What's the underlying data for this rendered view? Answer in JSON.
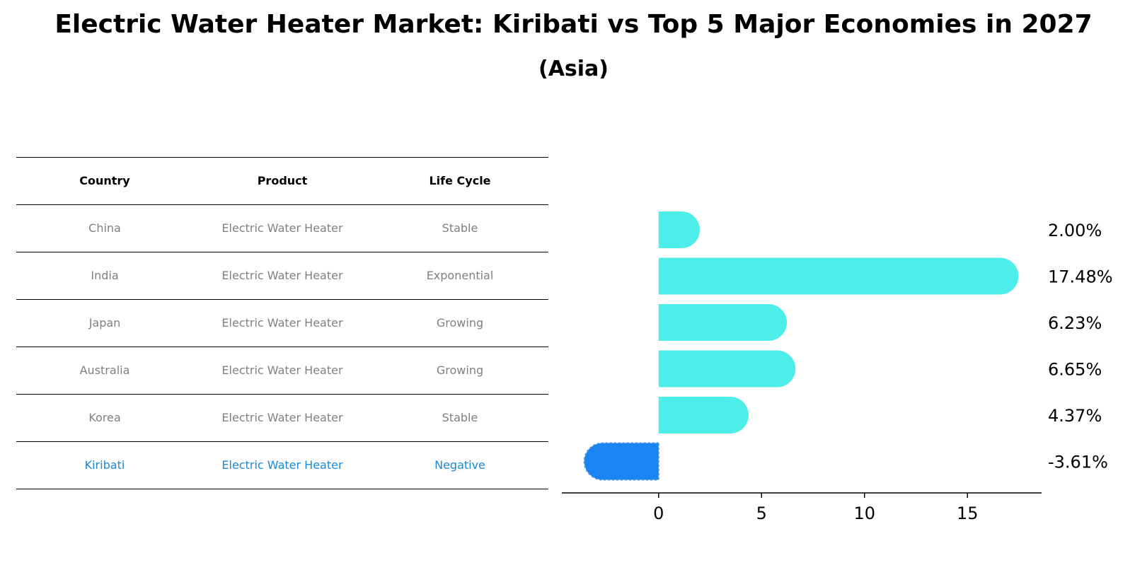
{
  "title": "Electric Water Heater Market: Kiribati vs Top 5 Major Economies in 2027",
  "subtitle": "(Asia)",
  "table": {
    "headers": [
      "Country",
      "Product",
      "Life Cycle"
    ],
    "rows": [
      [
        "China",
        "Electric Water Heater",
        "Stable"
      ],
      [
        "India",
        "Electric Water Heater",
        "Exponential"
      ],
      [
        "Japan",
        "Electric Water Heater",
        "Growing"
      ],
      [
        "Australia",
        "Electric Water Heater",
        "Growing"
      ],
      [
        "Korea",
        "Electric Water Heater",
        "Stable"
      ],
      [
        "Kiribati",
        "Electric Water Heater",
        "Negative"
      ]
    ],
    "highlight_row": 5,
    "text_color": "#808080",
    "highlight_color": "#1a88d6"
  },
  "chart_data": {
    "type": "bar",
    "orientation": "horizontal",
    "categories": [
      "China",
      "India",
      "Japan",
      "Australia",
      "Korea",
      "Kiribati"
    ],
    "values": [
      2.0,
      17.48,
      6.23,
      6.65,
      4.37,
      -3.61
    ],
    "value_labels": [
      "2.00%",
      "17.48%",
      "6.23%",
      "6.65%",
      "4.37%",
      "-3.61%"
    ],
    "xlim": [
      -4.7,
      18.6
    ],
    "xticks": [
      0,
      5,
      10,
      15
    ],
    "xtick_labels": [
      "0",
      "5",
      "10",
      "15"
    ],
    "colors": {
      "default": "#4deeea",
      "highlight": "#1a85f0"
    },
    "highlight_index": 5,
    "grid": false
  }
}
